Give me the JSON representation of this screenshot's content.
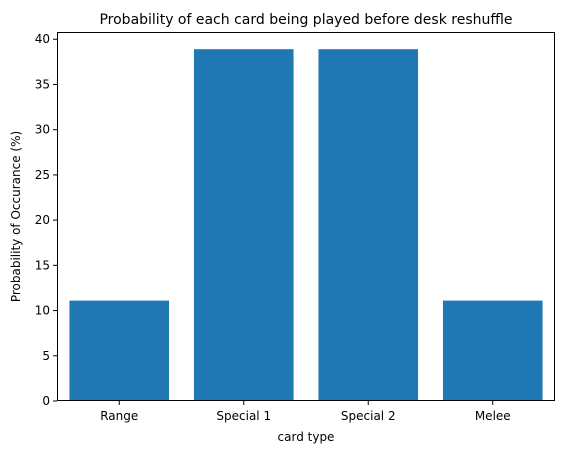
{
  "chart_data": {
    "type": "bar",
    "title": "Probability of each card being played before desk reshuffle",
    "xlabel": "card type",
    "ylabel": "Probability of Occurance (%)",
    "categories": [
      "Range",
      "Special 1",
      "Special 2",
      "Melee"
    ],
    "values": [
      11.1,
      38.9,
      38.9,
      11.1
    ],
    "ylim": [
      0,
      40.8
    ],
    "yticks": [
      0,
      5,
      10,
      15,
      20,
      25,
      30,
      35,
      40
    ],
    "bar_color": "#1f77b4",
    "grid": false,
    "legend": "none"
  }
}
